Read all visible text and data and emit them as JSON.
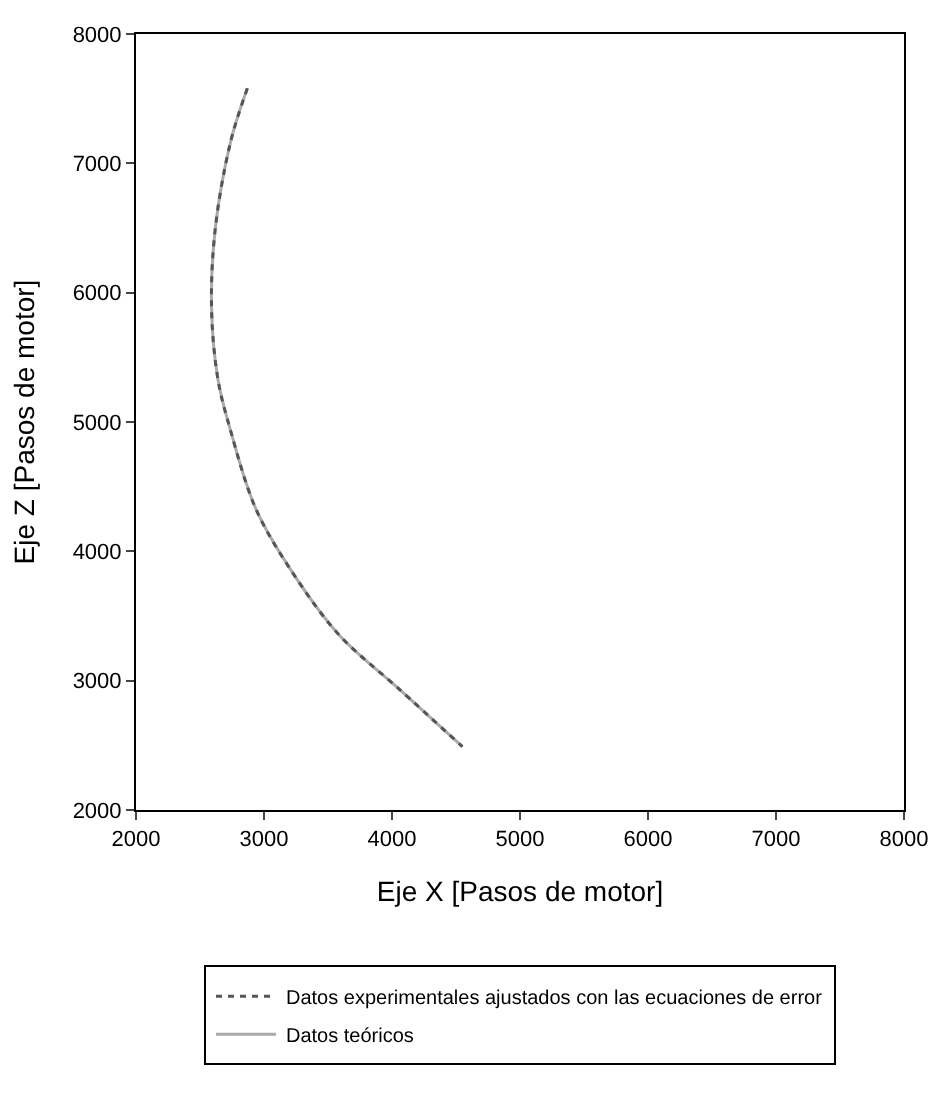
{
  "chart_data": {
    "type": "line",
    "xlabel": "Eje X [Pasos de motor]",
    "ylabel": "Eje Z [Pasos de motor]",
    "xlim": [
      2000,
      8000
    ],
    "xticks": [
      2000,
      3000,
      4000,
      5000,
      6000,
      7000,
      8000
    ],
    "ylim": [
      2000,
      8000
    ],
    "yticks": [
      2000,
      3000,
      4000,
      5000,
      6000,
      7000,
      8000
    ],
    "legend": "bottom",
    "marker": "none",
    "series": [
      {
        "name": "Datos experimentales ajustados con las ecuaciones de error",
        "color": "#555555",
        "line_style": "dotted",
        "x": [
          2870,
          2740,
          2620,
          2590,
          2640,
          2740,
          2940,
          3240,
          3590,
          4050,
          4550
        ],
        "values": [
          7580,
          7170,
          6500,
          5890,
          5330,
          4930,
          4320,
          3810,
          3350,
          2940,
          2490
        ]
      },
      {
        "name": "Datos teóricos",
        "color": "#aaaaaa",
        "line_style": "solid",
        "x": [
          2870,
          2740,
          2620,
          2590,
          2640,
          2740,
          2940,
          3240,
          3590,
          4050,
          4550
        ],
        "values": [
          7580,
          7170,
          6500,
          5890,
          5330,
          4930,
          4320,
          3810,
          3350,
          2940,
          2490
        ]
      }
    ]
  }
}
